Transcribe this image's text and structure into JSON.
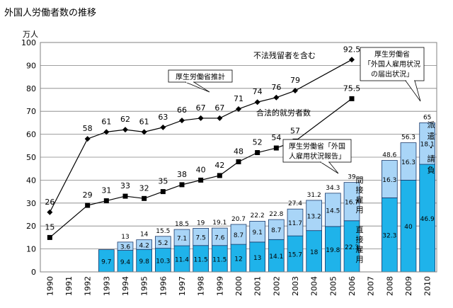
{
  "chart_data": {
    "type": "bar",
    "title": "外国人労働者数の推移",
    "y_unit": "万人",
    "ylim": [
      0,
      100
    ],
    "y_ticks": [
      0,
      10,
      20,
      30,
      40,
      50,
      60,
      70,
      80,
      90,
      100
    ],
    "grid": true,
    "categories": [
      "1990",
      "1991",
      "1992",
      "1993",
      "1994",
      "1995",
      "1996",
      "1997",
      "1998",
      "1999",
      "2000",
      "2001",
      "2002",
      "2003",
      "2004",
      "2005",
      "2006",
      "2007",
      "2008",
      "2009",
      "2010"
    ],
    "bar_series": [
      {
        "name": "直接雇用",
        "values": [
          null,
          null,
          null,
          9.7,
          9.4,
          9.8,
          10.3,
          11.4,
          11.5,
          11.5,
          12.0,
          13.0,
          14.1,
          15.7,
          18.0,
          19.8,
          22.3,
          null,
          32.3,
          40.0,
          46.9
        ]
      },
      {
        "name": "間接雇用",
        "values": [
          null,
          null,
          null,
          null,
          3.6,
          4.2,
          5.2,
          7.1,
          7.5,
          7.6,
          8.7,
          9.1,
          8.7,
          11.7,
          13.2,
          14.5,
          16.7,
          null,
          16.3,
          16.3,
          18.1
        ]
      }
    ],
    "bar_totals": [
      null,
      null,
      null,
      null,
      13.0,
      14.0,
      15.5,
      18.5,
      19.0,
      19.1,
      20.7,
      22.2,
      22.8,
      27.4,
      31.2,
      34.3,
      39.0,
      null,
      48.6,
      56.3,
      65.0
    ],
    "line_series": [
      {
        "name": "不法残留者を含む",
        "values": [
          26,
          null,
          58,
          61,
          62,
          61,
          63,
          66,
          67,
          67,
          71,
          74,
          76,
          79,
          null,
          null,
          92.5,
          null,
          null,
          null,
          null
        ]
      },
      {
        "name": "合法的就労者数",
        "values": [
          15,
          null,
          29,
          31,
          33,
          32,
          35,
          38,
          40,
          42,
          48,
          52,
          54,
          57,
          null,
          null,
          75.5,
          null,
          null,
          null,
          null
        ]
      }
    ],
    "annotations": {
      "mhlw_estimate": "厚生労働省推計",
      "report_line1": "厚生労働省「外国",
      "report_line2": "人雇用状況報告」",
      "notice_line1": "厚生労働省",
      "notice_line2": "「外国人雇用状況",
      "notice_line3": "の届出状況」",
      "indirect_label": "間接雇用",
      "direct_label": "直接雇用",
      "dispatch_label": "派遣・請負"
    },
    "colors": {
      "direct": "#1fb3ea",
      "indirect": "#a9d5f7",
      "bar_outline": "#1b3a6b",
      "line": "#000000",
      "grid": "#808080"
    }
  }
}
